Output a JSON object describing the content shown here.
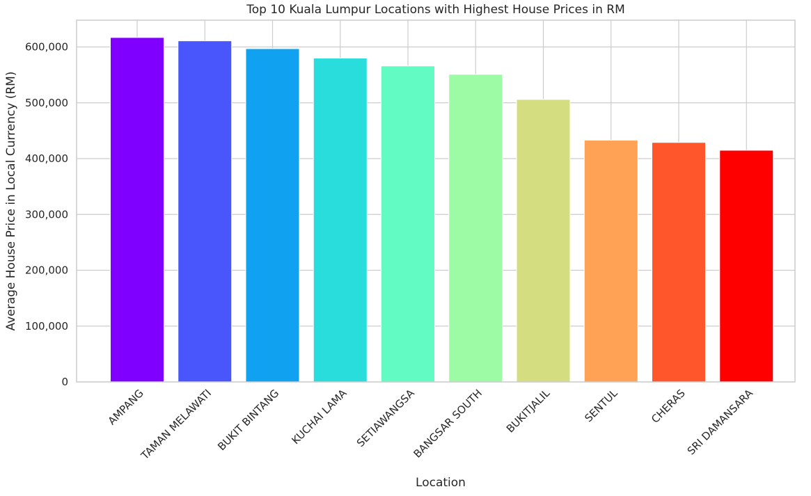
{
  "chart_data": {
    "type": "bar",
    "title": "Top 10 Kuala Lumpur Locations with Highest House Prices in RM",
    "xlabel": "Location",
    "ylabel": "Average House Price in Local Currency (RM)",
    "ylim": [
      0,
      648000
    ],
    "yticks": [
      0,
      100000,
      200000,
      300000,
      400000,
      500000,
      600000
    ],
    "ytick_labels": [
      "0",
      "100,000",
      "200,000",
      "300,000",
      "400,000",
      "500,000",
      "600,000"
    ],
    "grid": true,
    "categories": [
      "AMPANG",
      "TAMAN MELAWATI",
      "BUKIT BINTANG",
      "KUCHAI LAMA",
      "SETIAWANGSA",
      "BANGSAR SOUTH",
      "BUKITJALIL",
      "SENTUL",
      "CHERAS",
      "SRI DAMANSARA"
    ],
    "values": [
      617000,
      611000,
      597000,
      580000,
      566000,
      551000,
      506000,
      433000,
      429000,
      415000
    ],
    "colors": [
      "#8000ff",
      "#4856fb",
      "#10a2f0",
      "#2adddd",
      "#62fbc4",
      "#9cfba4",
      "#d4dd80",
      "#ffa256",
      "#ff562c",
      "#ff0000"
    ]
  }
}
